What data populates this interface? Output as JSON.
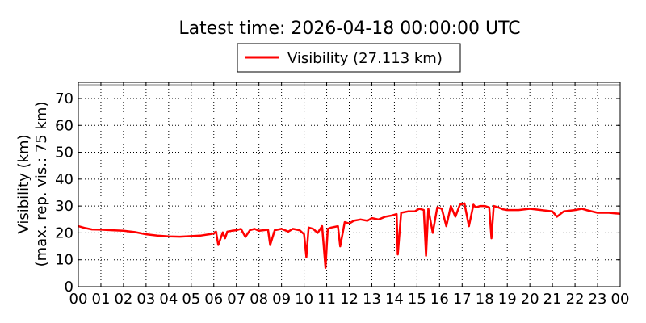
{
  "chart_data": {
    "type": "line",
    "title": "Latest time: 2026-04-18 00:00:00 UTC",
    "ylabel_line1": "Visibility (km)",
    "ylabel_line2": "(max. rep. vis.: 75 km)",
    "xlabel": "",
    "xlim": [
      0,
      24
    ],
    "ylim": [
      0,
      76
    ],
    "x_ticks": [
      "00",
      "01",
      "02",
      "03",
      "04",
      "05",
      "06",
      "07",
      "08",
      "09",
      "10",
      "11",
      "12",
      "13",
      "14",
      "15",
      "16",
      "17",
      "18",
      "19",
      "20",
      "21",
      "22",
      "23",
      "00"
    ],
    "y_ticks": [
      0,
      10,
      20,
      30,
      40,
      50,
      60,
      70
    ],
    "grid": true,
    "legend_position": "top-center",
    "series": [
      {
        "name": "Visibility (27.113 km)",
        "color": "#ff0000",
        "x_unit": "hours (UTC)",
        "x": [
          0,
          0.3,
          0.6,
          1,
          1.5,
          2,
          2.5,
          3,
          3.5,
          4,
          4.5,
          5,
          5.4,
          5.8,
          6,
          6.1,
          6.2,
          6.4,
          6.5,
          6.6,
          6.8,
          7,
          7.2,
          7.4,
          7.6,
          7.8,
          8,
          8.2,
          8.4,
          8.5,
          8.7,
          9,
          9.3,
          9.5,
          9.8,
          10,
          10.1,
          10.2,
          10.4,
          10.6,
          10.8,
          10.95,
          11.05,
          11.2,
          11.5,
          11.6,
          11.8,
          12,
          12.2,
          12.5,
          12.8,
          13,
          13.3,
          13.6,
          13.9,
          14.1,
          14.15,
          14.3,
          14.6,
          14.9,
          15.1,
          15.3,
          15.4,
          15.5,
          15.7,
          15.9,
          16.1,
          16.3,
          16.5,
          16.7,
          16.9,
          17.1,
          17.3,
          17.5,
          17.6,
          17.8,
          18,
          18.2,
          18.3,
          18.4,
          18.6,
          18.8,
          19,
          19.5,
          20,
          20.5,
          21,
          21.2,
          21.5,
          22,
          22.3,
          22.5,
          23,
          23.5,
          24
        ],
        "values": [
          22.5,
          21.8,
          21.3,
          21.2,
          21.0,
          20.8,
          20.3,
          19.5,
          19.0,
          18.7,
          18.6,
          18.8,
          19.0,
          19.5,
          19.8,
          20.5,
          15.5,
          20.2,
          18.0,
          20.5,
          20.8,
          21.0,
          21.5,
          18.5,
          21.0,
          21.5,
          20.8,
          21.0,
          21.2,
          15.5,
          21.0,
          21.5,
          20.5,
          21.5,
          21.0,
          19.5,
          11.0,
          22.0,
          21.5,
          20.0,
          22.5,
          7.0,
          21.5,
          22.0,
          22.5,
          15.0,
          24.0,
          23.5,
          24.5,
          25.0,
          24.5,
          25.5,
          25.0,
          26.0,
          26.5,
          27.0,
          12.0,
          27.5,
          28.0,
          28.0,
          29.0,
          28.5,
          11.5,
          29.0,
          20.0,
          29.5,
          29.0,
          22.5,
          30.0,
          26.0,
          30.5,
          31.0,
          22.5,
          30.5,
          29.5,
          30.0,
          30.0,
          29.5,
          18.0,
          30.0,
          29.5,
          28.8,
          28.5,
          28.5,
          29.0,
          28.5,
          28.0,
          26.0,
          28.0,
          28.5,
          29.0,
          28.5,
          27.5,
          27.5,
          27.1
        ]
      }
    ]
  }
}
